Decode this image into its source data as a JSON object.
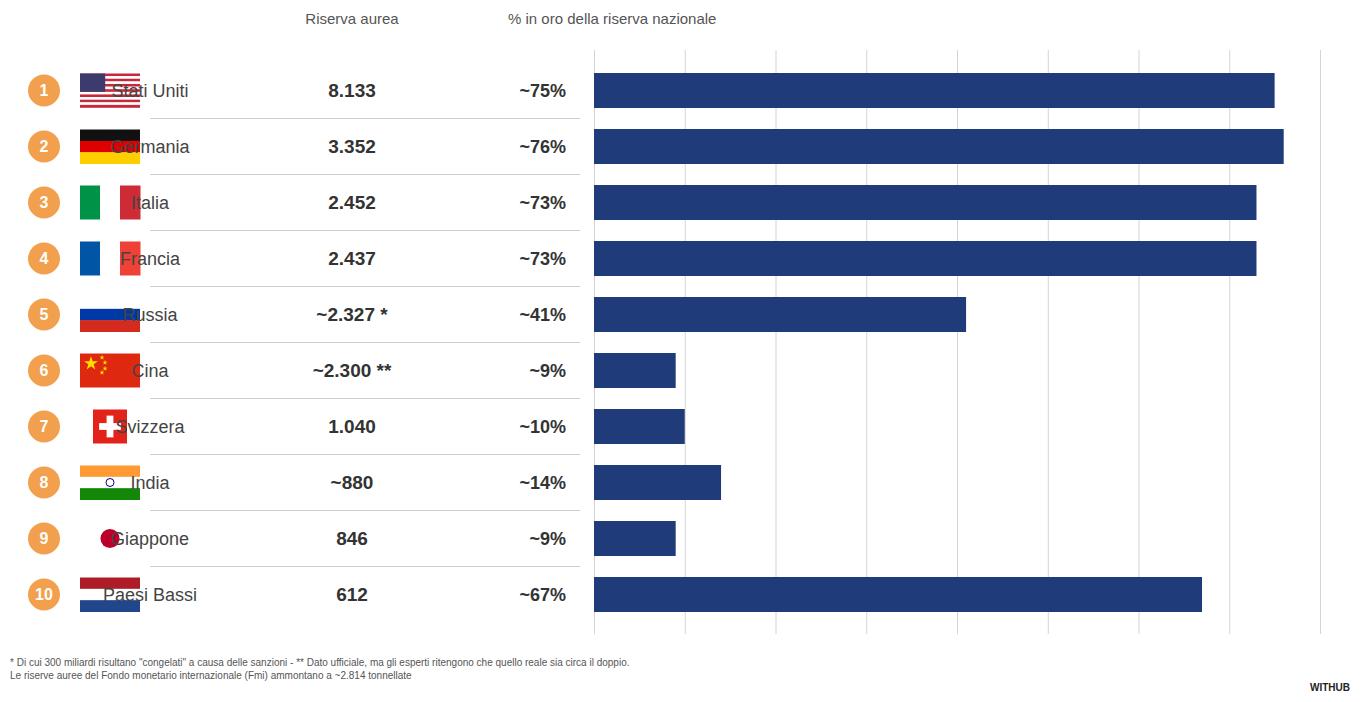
{
  "chart_data": {
    "type": "bar",
    "orientation": "horizontal",
    "column_headers": [
      "Riserva aurea",
      "% in oro della riserva nazionale"
    ],
    "categories": [
      "Stati Uniti",
      "Germania",
      "Italia",
      "Francia",
      "Russia",
      "Cina",
      "Svizzera",
      "India",
      "Giappone",
      "Paesi Bassi"
    ],
    "ranks": [
      1,
      2,
      3,
      4,
      5,
      6,
      7,
      8,
      9,
      10
    ],
    "reserves": [
      8133,
      3352,
      2452,
      2437,
      2327,
      2300,
      1040,
      880,
      846,
      612
    ],
    "reserve_labels": [
      "8.133",
      "3.352",
      "2.452",
      "2.437",
      "~2.327 *",
      "~2.300 **",
      "1.040",
      "~880",
      "846",
      "612"
    ],
    "values": [
      75,
      76,
      73,
      73,
      41,
      9,
      10,
      14,
      9,
      67
    ],
    "value_labels": [
      "~75%",
      "~76%",
      "~73%",
      "~73%",
      "~41%",
      "~9%",
      "~10%",
      "~14%",
      "~9%",
      "~67%"
    ],
    "data_labels": true,
    "color": "#1f3b7a",
    "xlim": [
      0,
      80
    ],
    "xticks": [
      0,
      10,
      20,
      30,
      40,
      50,
      60,
      70,
      80
    ],
    "grid": true,
    "tick_labels": false,
    "notes": [
      "* Di cui 300 miliardi risultano \"congelati\" a causa delle sanzioni - ** Dato ufficiale, ma gli esperti ritengono che quello reale sia circa il doppio.",
      "Le riserve auree del Fondo monetario internazionale (Fmi) ammontano a ~2.814 tonnellate"
    ],
    "source": "WITHUB"
  }
}
